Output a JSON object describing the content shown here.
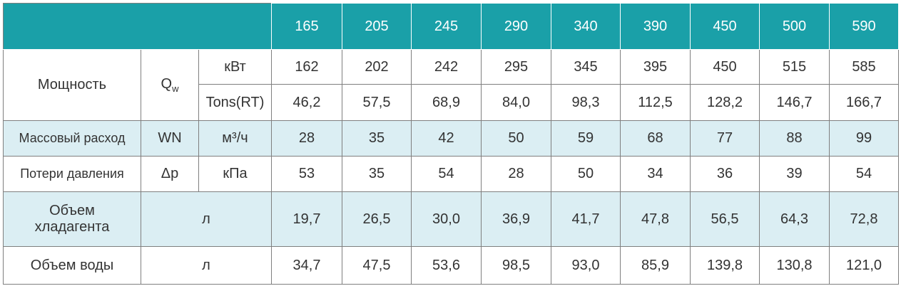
{
  "header": {
    "models": [
      "165",
      "205",
      "245",
      "290",
      "340",
      "390",
      "450",
      "500",
      "590"
    ]
  },
  "rows": {
    "power": {
      "label": "Мощность",
      "symbol_main": "Q",
      "symbol_sub": "w",
      "kw": {
        "unit": "кВт",
        "values": [
          "162",
          "202",
          "242",
          "295",
          "345",
          "395",
          "450",
          "515",
          "585"
        ]
      },
      "tons": {
        "unit": "Tons(RT)",
        "values": [
          "46,2",
          "57,5",
          "68,9",
          "84,0",
          "98,3",
          "112,5",
          "128,2",
          "146,7",
          "166,7"
        ]
      }
    },
    "mass_flow": {
      "label": "Массовый расход",
      "symbol": "WN",
      "unit": "м³/ч",
      "values": [
        "28",
        "35",
        "42",
        "50",
        "59",
        "68",
        "77",
        "88",
        "99"
      ]
    },
    "pressure_loss": {
      "label": "Потери давления",
      "symbol": "Δp",
      "unit": "кПа",
      "values": [
        "53",
        "35",
        "54",
        "28",
        "50",
        "34",
        "36",
        "39",
        "54"
      ]
    },
    "refrigerant_volume": {
      "label_line1": "Объем",
      "label_line2": "хладагента",
      "unit": "л",
      "values": [
        "19,7",
        "26,5",
        "30,0",
        "36,9",
        "41,7",
        "47,8",
        "56,5",
        "64,3",
        "72,8"
      ]
    },
    "water_volume": {
      "label": "Объем воды",
      "unit": "л",
      "values": [
        "34,7",
        "47,5",
        "53,6",
        "98,5",
        "93,0",
        "85,9",
        "139,8",
        "130,8",
        "121,0"
      ]
    }
  },
  "colors": {
    "header_bg": "#1aa0a8",
    "alt_row_bg": "#dbeef3",
    "border": "#7f7f7f",
    "text": "#333333"
  }
}
